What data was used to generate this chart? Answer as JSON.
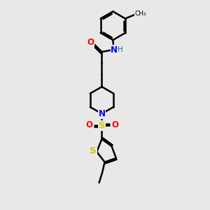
{
  "bg_color": "#e8e8e8",
  "bond_color": "#000000",
  "O_color": "#ff0000",
  "N_color": "#0000ff",
  "S_color": "#cccc00",
  "H_color": "#008080",
  "line_width": 1.8,
  "figsize": [
    3.0,
    3.0
  ],
  "dpi": 100,
  "xlim": [
    0,
    10
  ],
  "ylim": [
    0,
    13
  ]
}
